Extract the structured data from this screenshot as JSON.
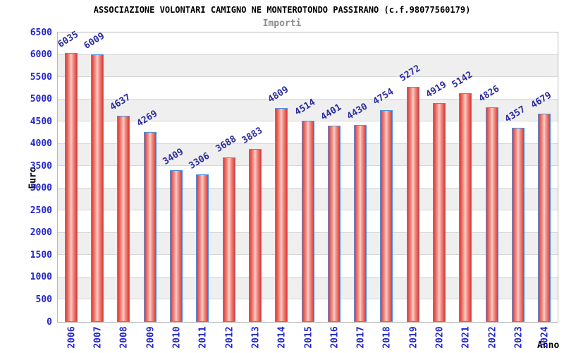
{
  "chart_data": {
    "type": "bar",
    "title": "ASSOCIAZIONE VOLONTARI CAMIGNO NE MONTEROTONDO PASSIRANO (c.f.98077560179)",
    "subtitle": "Importi",
    "xlabel": "Anno",
    "ylabel": "Euro",
    "categories": [
      "2006",
      "2007",
      "2008",
      "2009",
      "2010",
      "2011",
      "2012",
      "2013",
      "2014",
      "2015",
      "2016",
      "2017",
      "2018",
      "2019",
      "2020",
      "2021",
      "2022",
      "2023",
      "2024"
    ],
    "values": [
      6035,
      6009,
      4637,
      4269,
      3409,
      3306,
      3688,
      3883,
      4809,
      4514,
      4401,
      4430,
      4754,
      5272,
      4919,
      5142,
      4826,
      4357,
      4679
    ],
    "ylim": [
      0,
      6500
    ],
    "ytick_step": 500,
    "grid": true,
    "legend_position": "none",
    "colors": {
      "bar_fill_dark": "#c62828",
      "bar_fill_mid": "#e8453c",
      "bar_fill_light": "#f6c9c4",
      "bar_border": "#4a90e2",
      "tick_label": "#2427cb",
      "value_label": "#2a2aa0",
      "band_gray": "#efefef",
      "gridline": "#d6d6d6",
      "plot_border": "#b9b9b9",
      "title": "#000000",
      "subtitle": "#8c8c8c"
    }
  }
}
